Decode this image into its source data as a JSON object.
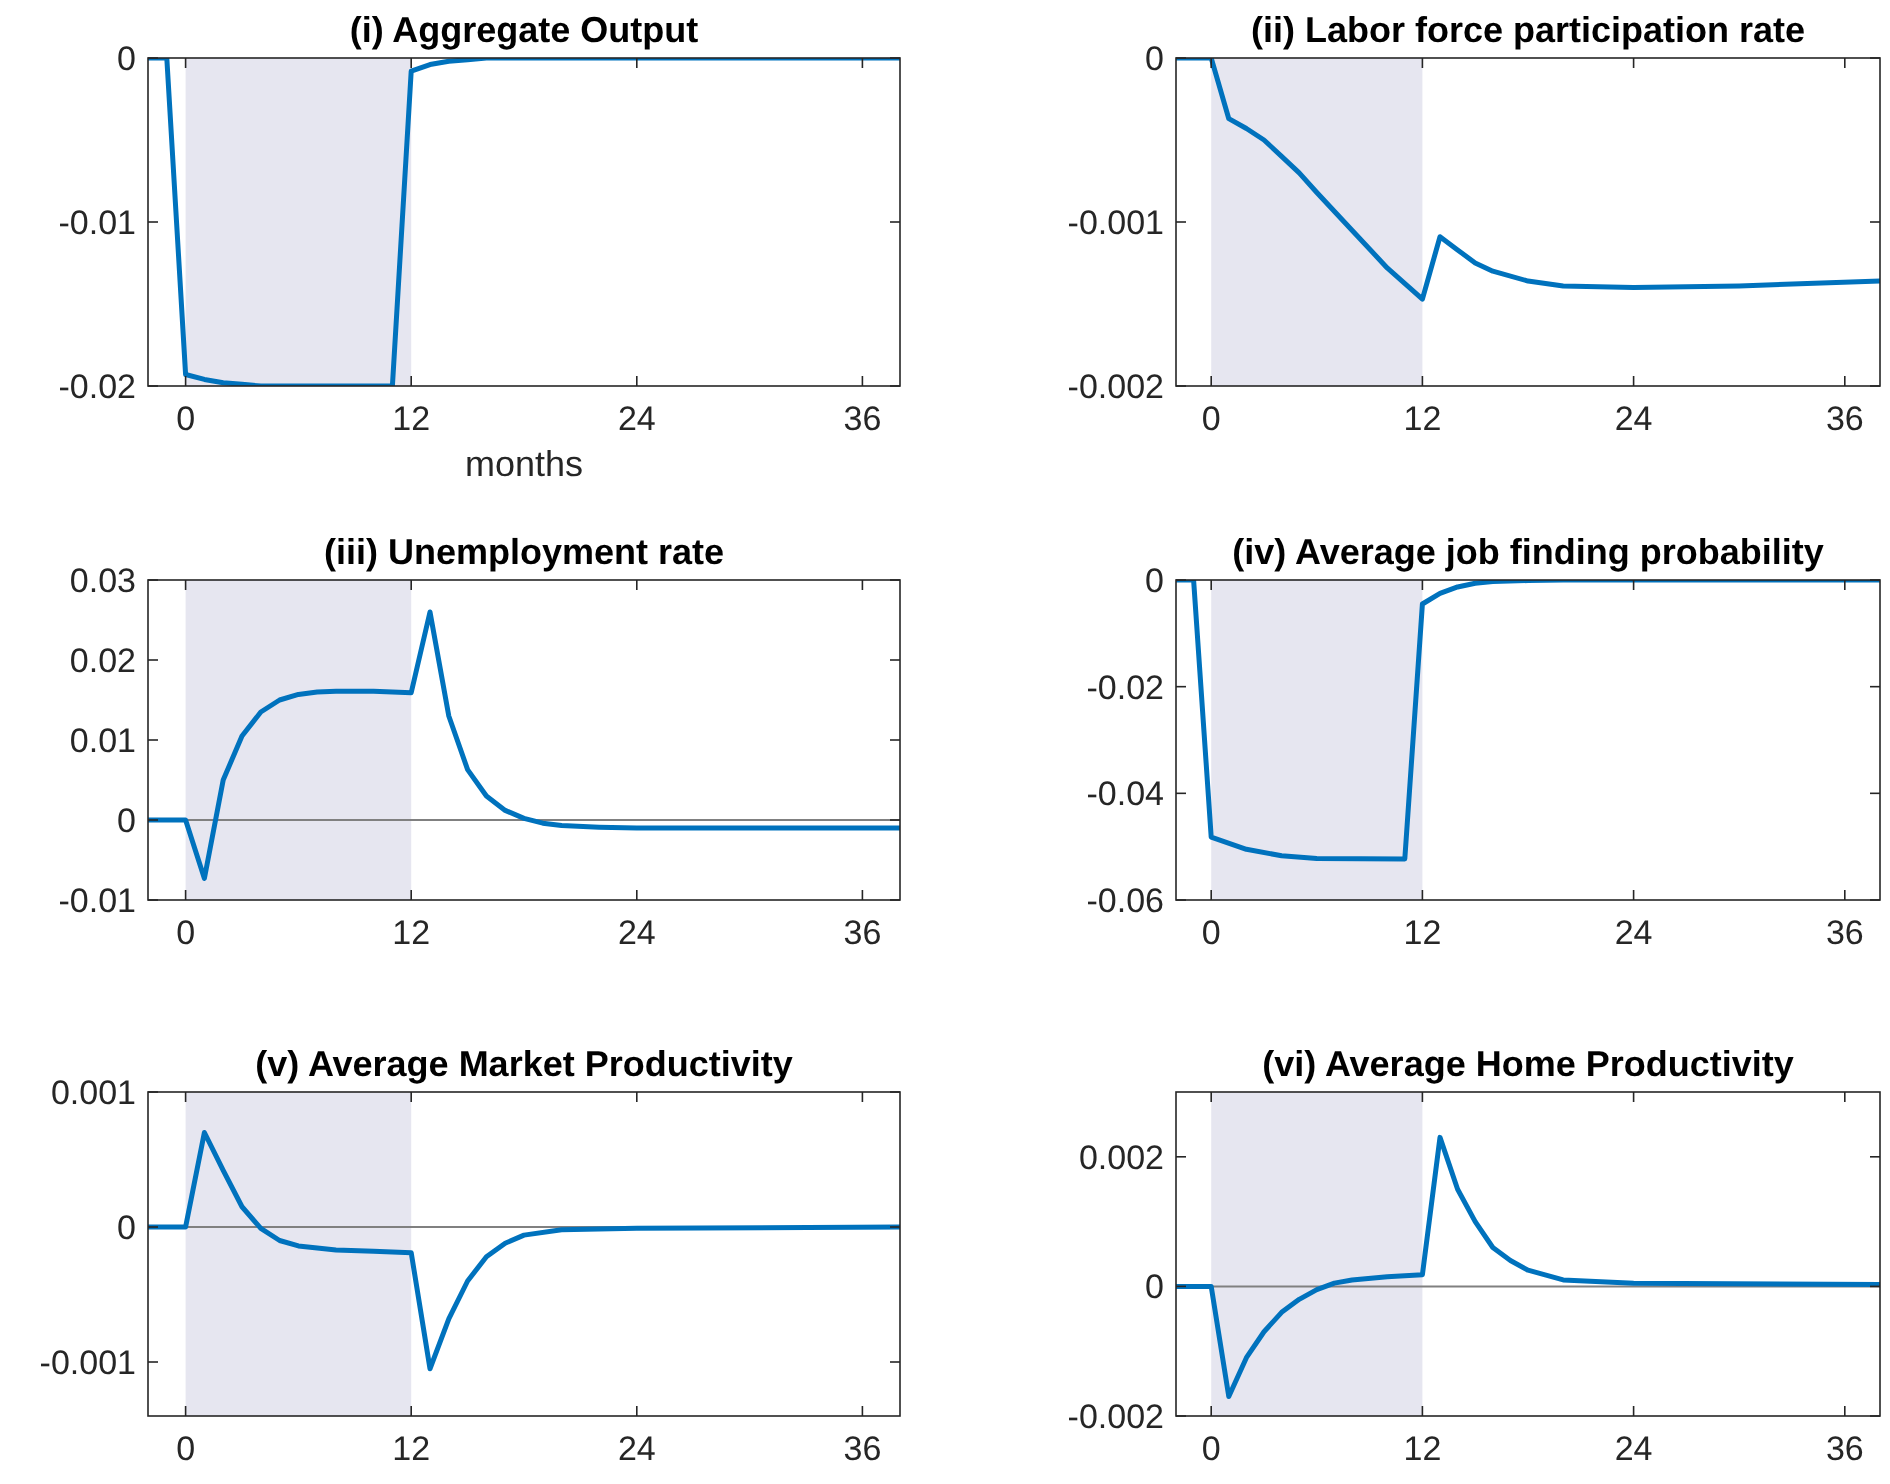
{
  "chart_data": [
    {
      "type": "line",
      "title": "(i)  Aggregate Output",
      "xlabel": "months",
      "xlim": [
        -2,
        38
      ],
      "xticks": [
        0,
        12,
        24,
        36
      ],
      "ylim": [
        -0.02,
        0
      ],
      "yticks": [
        -0.02,
        -0.01,
        0
      ],
      "bands": [
        {
          "axis": "x",
          "from": 0,
          "to": 12,
          "color": "#e6e6f0"
        }
      ],
      "series": [
        {
          "color": "#0072bd",
          "x": [
            -2,
            -1,
            0,
            1,
            2,
            3,
            4,
            11,
            12,
            13,
            14,
            15,
            16,
            18,
            38
          ],
          "values": [
            0,
            0,
            -0.0193,
            -0.0196,
            -0.0198,
            -0.0199,
            -0.02,
            -0.02,
            -0.0008,
            -0.0004,
            -0.0002,
            -0.0001,
            0,
            0,
            0
          ]
        }
      ]
    },
    {
      "type": "line",
      "title": "(ii)  Labor force participation rate",
      "xlim": [
        -2,
        38
      ],
      "xticks": [
        0,
        12,
        24,
        36
      ],
      "ylim": [
        -0.002,
        0
      ],
      "yticks": [
        -0.002,
        -0.001,
        0
      ],
      "bands": [
        {
          "axis": "x",
          "from": 0,
          "to": 12,
          "color": "#e6e6f0"
        }
      ],
      "series": [
        {
          "color": "#0072bd",
          "x": [
            -2,
            0,
            1,
            2,
            3,
            4,
            5,
            6,
            8,
            10,
            12,
            13,
            14,
            15,
            16,
            18,
            20,
            24,
            30,
            38
          ],
          "values": [
            0,
            0,
            -0.00037,
            -0.00043,
            -0.0005,
            -0.0006,
            -0.0007,
            -0.00082,
            -0.00105,
            -0.00128,
            -0.00147,
            -0.00109,
            -0.00117,
            -0.00125,
            -0.0013,
            -0.00136,
            -0.00139,
            -0.0014,
            -0.00139,
            -0.00136
          ]
        }
      ]
    },
    {
      "type": "line",
      "title": "(iii)  Unemployment rate",
      "xlim": [
        -2,
        38
      ],
      "xticks": [
        0,
        12,
        24,
        36
      ],
      "ylim": [
        -0.01,
        0.03
      ],
      "yticks": [
        -0.01,
        0,
        0.01,
        0.02,
        0.03
      ],
      "bands": [
        {
          "axis": "x",
          "from": 0,
          "to": 12,
          "color": "#e6e6f0"
        }
      ],
      "ref_lines": [
        {
          "axis": "y",
          "value": 0,
          "color": "#808080"
        }
      ],
      "series": [
        {
          "color": "#0072bd",
          "x": [
            -2,
            0,
            1,
            2,
            3,
            4,
            5,
            6,
            7,
            8,
            10,
            12,
            13,
            14,
            15,
            16,
            17,
            18,
            19,
            20,
            22,
            24,
            38
          ],
          "values": [
            0,
            0,
            -0.0073,
            0.005,
            0.0105,
            0.0135,
            0.015,
            0.0157,
            0.016,
            0.0161,
            0.0161,
            0.0159,
            0.026,
            0.013,
            0.0063,
            0.003,
            0.0012,
            0.0002,
            -0.0004,
            -0.0007,
            -0.0009,
            -0.001,
            -0.001
          ]
        }
      ]
    },
    {
      "type": "line",
      "title": "(iv)  Average job finding probability",
      "xlim": [
        -2,
        38
      ],
      "xticks": [
        0,
        12,
        24,
        36
      ],
      "ylim": [
        -0.06,
        0
      ],
      "yticks": [
        -0.06,
        -0.04,
        -0.02,
        0
      ],
      "bands": [
        {
          "axis": "x",
          "from": 0,
          "to": 12,
          "color": "#e6e6f0"
        }
      ],
      "series": [
        {
          "color": "#0072bd",
          "x": [
            -2,
            -1,
            0,
            2,
            4,
            6,
            11,
            12,
            13,
            14,
            15,
            16,
            18,
            20,
            38
          ],
          "values": [
            0,
            0,
            -0.0482,
            -0.0505,
            -0.0517,
            -0.0522,
            -0.0523,
            -0.0045,
            -0.0025,
            -0.0013,
            -0.0006,
            -0.0003,
            -0.0001,
            0,
            0
          ]
        }
      ]
    },
    {
      "type": "line",
      "title": "(v)  Average Market Productivity",
      "xlim": [
        -2,
        38
      ],
      "xticks": [
        0,
        12,
        24,
        36
      ],
      "ylim": [
        -0.0014,
        0.001
      ],
      "yticks": [
        -0.001,
        0,
        0.001
      ],
      "bands": [
        {
          "axis": "x",
          "from": 0,
          "to": 12,
          "color": "#e6e6f0"
        }
      ],
      "ref_lines": [
        {
          "axis": "y",
          "value": 0,
          "color": "#808080"
        }
      ],
      "series": [
        {
          "color": "#0072bd",
          "x": [
            -2,
            0,
            1,
            2,
            3,
            4,
            5,
            6,
            8,
            10,
            12,
            13,
            14,
            15,
            16,
            17,
            18,
            20,
            24,
            38
          ],
          "values": [
            0,
            0,
            0.0007,
            0.00042,
            0.00015,
            -1e-05,
            -0.0001,
            -0.00014,
            -0.00017,
            -0.00018,
            -0.00019,
            -0.00105,
            -0.00068,
            -0.0004,
            -0.00022,
            -0.00012,
            -6e-05,
            -2e-05,
            -1e-05,
            0
          ]
        }
      ]
    },
    {
      "type": "line",
      "title": "(vi)  Average Home Productivity",
      "xlim": [
        -2,
        38
      ],
      "xticks": [
        0,
        12,
        24,
        36
      ],
      "ylim": [
        -0.002,
        0.003
      ],
      "yticks": [
        -0.002,
        0,
        0.002
      ],
      "bands": [
        {
          "axis": "x",
          "from": 0,
          "to": 12,
          "color": "#e6e6f0"
        }
      ],
      "ref_lines": [
        {
          "axis": "y",
          "value": 0,
          "color": "#808080"
        }
      ],
      "series": [
        {
          "color": "#0072bd",
          "x": [
            -2,
            0,
            1,
            2,
            3,
            4,
            5,
            6,
            7,
            8,
            10,
            12,
            13,
            14,
            15,
            16,
            17,
            18,
            20,
            24,
            38
          ],
          "values": [
            0,
            0,
            -0.0017,
            -0.0011,
            -0.0007,
            -0.0004,
            -0.0002,
            -5e-05,
            5e-05,
            0.0001,
            0.00015,
            0.00018,
            0.0023,
            0.0015,
            0.001,
            0.0006,
            0.0004,
            0.00025,
            0.0001,
            5e-05,
            3e-05
          ]
        }
      ]
    }
  ]
}
